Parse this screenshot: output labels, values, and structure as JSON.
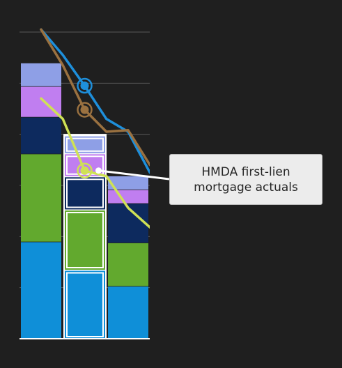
{
  "chart_data": {
    "type": "bar",
    "stacked": true,
    "categories": [
      "",
      "",
      ""
    ],
    "ylim": [
      0,
      6
    ],
    "grid": true,
    "highlighted_category_index": 1,
    "series": [
      {
        "color": "#0f8fd8",
        "values": [
          1.9,
          1.35,
          1.03
        ]
      },
      {
        "color": "#62a92e",
        "values": [
          1.72,
          1.18,
          0.85
        ]
      },
      {
        "color": "#0d2a5e",
        "values": [
          0.72,
          0.65,
          0.77
        ]
      },
      {
        "color": "#c07ef0",
        "values": [
          0.6,
          0.45,
          0.27
        ]
      },
      {
        "color": "#8e9fe6",
        "values": [
          0.46,
          0.35,
          0.27
        ]
      }
    ],
    "lines": [
      {
        "color": "#1e8fdb",
        "x": [
          0,
          0.5,
          1,
          1.5,
          2,
          2.5
        ],
        "y": [
          6.05,
          5.55,
          4.95,
          4.3,
          4.05,
          3.25
        ]
      },
      {
        "color": "#9a7140",
        "x": [
          0,
          0.5,
          1,
          1.5,
          2,
          2.5
        ],
        "y": [
          6.05,
          5.35,
          4.48,
          4.05,
          4.08,
          3.4
        ]
      },
      {
        "color": "#cfe155",
        "x": [
          0,
          0.5,
          1,
          1.5,
          2,
          2.5
        ],
        "y": [
          4.7,
          4.3,
          3.29,
          3.18,
          2.56,
          2.18
        ]
      }
    ],
    "markers": [
      {
        "line": 0,
        "x": 1,
        "y": 4.95
      },
      {
        "line": 1,
        "x": 1,
        "y": 4.48
      },
      {
        "line": 2,
        "x": 1,
        "y": 3.29
      }
    ],
    "annotation": {
      "text": "HMDA first-lien mortgage actuals",
      "target_line": 2,
      "target_x": 1
    }
  }
}
